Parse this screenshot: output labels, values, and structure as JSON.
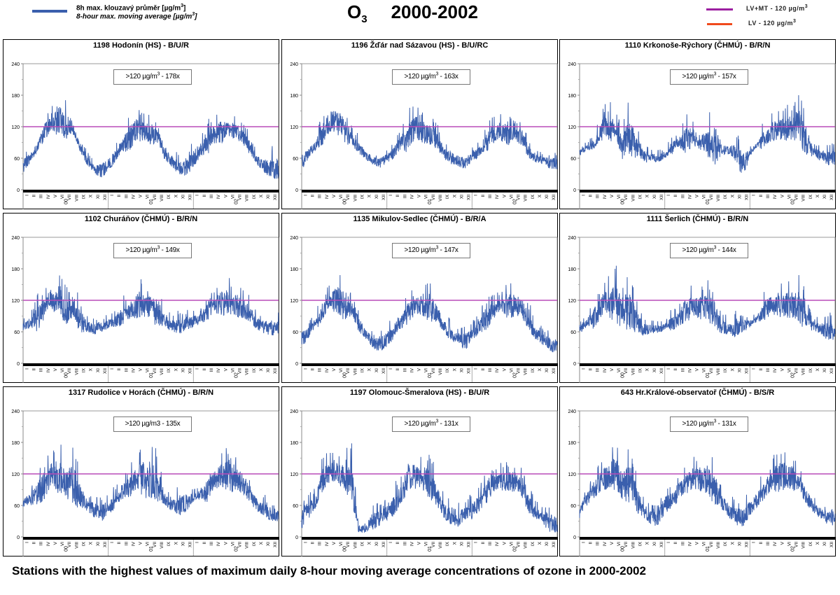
{
  "header": {
    "legend_series_cz": "8h max. klouzavý průměr [µg/m",
    "legend_series_en": "8-hour max. moving average [µg/m",
    "legend_sup": "3",
    "legend_close": "]",
    "title_species": "O",
    "title_sub": "3",
    "title_years": "2000-2002",
    "legend_lvmt": "LV+MT - 120 µg/m",
    "legend_lv": "LV    - 120 µg/m",
    "legend_unit_sup": "3"
  },
  "colors": {
    "series": "#3a5fad",
    "limit_lvmt": "#9c1fa0",
    "limit_lv": "#f04a1c",
    "threshold_line": "#b84bb8"
  },
  "caption": "Stations with the highest values of maximum daily 8-hour moving average concentrations of ozone in 2000-2002",
  "chart_data": [
    {
      "type": "line",
      "title": "1198 Hodonín (HS) - B/U/R",
      "count_label": ">120 µg/m",
      "count_sup": "3",
      "count_suffix": " - 178x",
      "ylim": [
        0,
        240
      ],
      "yticks": [
        "0",
        "60",
        "120",
        "180",
        "240"
      ],
      "threshold": 120,
      "months": [
        "I",
        "II",
        "III",
        "IV",
        "V",
        "VI",
        "VII",
        "VIII",
        "IX",
        "X",
        "XI",
        "XII"
      ],
      "years": [
        "00",
        "01",
        "02"
      ],
      "monthly_mean": [
        45,
        60,
        80,
        110,
        125,
        130,
        120,
        115,
        80,
        55,
        40,
        35,
        45,
        65,
        85,
        100,
        115,
        110,
        105,
        100,
        65,
        55,
        40,
        40,
        60,
        75,
        90,
        105,
        110,
        115,
        110,
        100,
        75,
        55,
        45,
        40
      ],
      "monthly_peak": [
        70,
        75,
        95,
        140,
        150,
        185,
        170,
        130,
        100,
        70,
        55,
        60,
        70,
        85,
        110,
        150,
        155,
        145,
        145,
        120,
        85,
        75,
        65,
        70,
        90,
        100,
        135,
        135,
        150,
        140,
        135,
        125,
        100,
        70,
        70,
        75
      ]
    },
    {
      "type": "line",
      "title": "1196 Žďár nad Sázavou (HS) - B/U/RC",
      "count_label": ">120 µg/m",
      "count_sup": "3",
      "count_suffix": " - 163x",
      "ylim": [
        0,
        240
      ],
      "yticks": [
        "0",
        "60",
        "120",
        "180",
        "240"
      ],
      "threshold": 120,
      "months": [
        "I",
        "II",
        "III",
        "IV",
        "V",
        "VI",
        "VII",
        "VIII",
        "IX",
        "X",
        "XI",
        "XII"
      ],
      "years": [
        "00",
        "01",
        "02"
      ],
      "monthly_mean": [
        50,
        70,
        85,
        110,
        130,
        130,
        110,
        100,
        80,
        65,
        55,
        50,
        60,
        70,
        90,
        100,
        115,
        110,
        105,
        95,
        70,
        60,
        55,
        50,
        60,
        75,
        90,
        105,
        110,
        105,
        105,
        100,
        70,
        60,
        55,
        50
      ],
      "monthly_peak": [
        80,
        85,
        100,
        155,
        165,
        175,
        155,
        125,
        100,
        80,
        70,
        70,
        75,
        90,
        115,
        155,
        160,
        150,
        145,
        125,
        90,
        80,
        75,
        70,
        80,
        95,
        125,
        140,
        140,
        145,
        125,
        130,
        90,
        75,
        70,
        70
      ]
    },
    {
      "type": "line",
      "title": "1110 Krkonoše-Rýchory (ČHMÚ) - B/R/N",
      "count_label": ">120 µg/m",
      "count_sup": "3",
      "count_suffix": " - 157x",
      "ylim": [
        0,
        240
      ],
      "yticks": [
        "0",
        "60",
        "120",
        "180",
        "240"
      ],
      "threshold": 120,
      "months": [
        "I",
        "II",
        "III",
        "IV",
        "V",
        "VI",
        "VII",
        "VIII",
        "IX",
        "X",
        "XI",
        "XII"
      ],
      "years": [
        "00",
        "01",
        "02"
      ],
      "monthly_mean": [
        70,
        80,
        85,
        110,
        120,
        115,
        80,
        100,
        80,
        65,
        60,
        60,
        65,
        80,
        90,
        95,
        100,
        90,
        85,
        90,
        75,
        75,
        70,
        45,
        70,
        85,
        95,
        110,
        115,
        115,
        115,
        115,
        85,
        70,
        65,
        60
      ],
      "monthly_peak": [
        80,
        90,
        100,
        145,
        175,
        150,
        120,
        175,
        120,
        90,
        75,
        75,
        75,
        100,
        105,
        145,
        130,
        115,
        130,
        170,
        95,
        90,
        100,
        90,
        80,
        95,
        130,
        145,
        150,
        155,
        155,
        185,
        120,
        85,
        85,
        85
      ]
    },
    {
      "type": "line",
      "title": "1102 Churáňov (ČHMÚ) - B/R/N",
      "count_label": ">120 µg/m",
      "count_sup": "3",
      "count_suffix": " - 149x",
      "ylim": [
        0,
        240
      ],
      "yticks": [
        "0",
        "60",
        "120",
        "180",
        "240"
      ],
      "threshold": 120,
      "months": [
        "I",
        "II",
        "III",
        "IV",
        "V",
        "VI",
        "VII",
        "VIII",
        "IX",
        "X",
        "XI",
        "XII"
      ],
      "years": [
        "00",
        "01",
        "02"
      ],
      "monthly_mean": [
        70,
        75,
        85,
        105,
        120,
        120,
        100,
        105,
        80,
        70,
        65,
        70,
        75,
        80,
        90,
        100,
        110,
        110,
        105,
        95,
        80,
        70,
        70,
        75,
        80,
        85,
        100,
        110,
        115,
        115,
        110,
        105,
        90,
        75,
        70,
        65
      ],
      "monthly_peak": [
        85,
        90,
        130,
        140,
        155,
        170,
        150,
        150,
        120,
        90,
        85,
        90,
        90,
        100,
        125,
        130,
        155,
        150,
        150,
        145,
        100,
        90,
        95,
        100,
        100,
        100,
        135,
        135,
        160,
        155,
        150,
        140,
        120,
        95,
        95,
        95
      ]
    },
    {
      "type": "line",
      "title": "1135 Mikulov-Sedlec (ČHMÚ) - B/R/A",
      "count_label": ">120 µg/m",
      "count_sup": "3",
      "count_suffix": " - 147x",
      "ylim": [
        0,
        240
      ],
      "yticks": [
        "0",
        "60",
        "120",
        "180",
        "240"
      ],
      "threshold": 120,
      "months": [
        "I",
        "II",
        "III",
        "IV",
        "V",
        "VI",
        "VII",
        "VIII",
        "IX",
        "X",
        "XI",
        "XII"
      ],
      "years": [
        "00",
        "01",
        "02"
      ],
      "monthly_mean": [
        45,
        60,
        75,
        100,
        120,
        120,
        110,
        105,
        75,
        55,
        40,
        35,
        45,
        60,
        80,
        95,
        110,
        110,
        105,
        95,
        70,
        55,
        45,
        40,
        55,
        70,
        85,
        100,
        110,
        110,
        110,
        105,
        75,
        55,
        45,
        35
      ],
      "monthly_peak": [
        75,
        80,
        100,
        135,
        150,
        170,
        165,
        130,
        100,
        70,
        60,
        60,
        70,
        85,
        105,
        135,
        140,
        145,
        155,
        125,
        90,
        80,
        65,
        70,
        75,
        95,
        125,
        130,
        130,
        155,
        150,
        135,
        110,
        75,
        65,
        60
      ]
    },
    {
      "type": "line",
      "title": "1111 Šerlich (ČHMÚ) - B/R/N",
      "count_label": ">120 µg/m",
      "count_sup": "3",
      "count_suffix": " - 144x",
      "ylim": [
        0,
        240
      ],
      "yticks": [
        "0",
        "60",
        "120",
        "180",
        "240"
      ],
      "threshold": 120,
      "months": [
        "I",
        "II",
        "III",
        "IV",
        "V",
        "VI",
        "VII",
        "VIII",
        "IX",
        "X",
        "XI",
        "XII"
      ],
      "years": [
        "00",
        "01",
        "02"
      ],
      "monthly_mean": [
        65,
        75,
        85,
        105,
        115,
        115,
        95,
        100,
        80,
        65,
        65,
        65,
        70,
        75,
        85,
        100,
        105,
        105,
        105,
        95,
        70,
        65,
        65,
        70,
        75,
        85,
        100,
        110,
        110,
        110,
        110,
        105,
        80,
        70,
        65,
        60
      ],
      "monthly_peak": [
        80,
        90,
        120,
        140,
        165,
        180,
        150,
        170,
        120,
        90,
        80,
        80,
        80,
        100,
        110,
        145,
        140,
        145,
        150,
        145,
        95,
        85,
        95,
        90,
        90,
        95,
        135,
        140,
        150,
        155,
        155,
        170,
        110,
        85,
        85,
        90
      ]
    },
    {
      "type": "line",
      "title": "1317 Rudolice v Horách (ČHMÚ) - B/R/N",
      "count_label": ">120 µg/m3",
      "count_sup": "",
      "count_suffix": " - 135x",
      "ylim": [
        0,
        240
      ],
      "yticks": [
        "0",
        "60",
        "120",
        "180",
        "240"
      ],
      "threshold": 120,
      "months": [
        "I",
        "II",
        "III",
        "IV",
        "V",
        "VI",
        "VII",
        "VIII",
        "IX",
        "X",
        "XI",
        "XII"
      ],
      "years": [
        "00",
        "01",
        "02"
      ],
      "monthly_mean": [
        65,
        70,
        80,
        100,
        120,
        115,
        100,
        100,
        75,
        60,
        50,
        45,
        55,
        70,
        85,
        95,
        110,
        110,
        105,
        95,
        70,
        60,
        60,
        65,
        75,
        80,
        85,
        110,
        115,
        115,
        110,
        100,
        75,
        60,
        50,
        40
      ],
      "monthly_peak": [
        80,
        90,
        120,
        150,
        160,
        175,
        145,
        170,
        120,
        80,
        75,
        75,
        80,
        95,
        115,
        130,
        150,
        175,
        165,
        150,
        90,
        80,
        95,
        95,
        90,
        95,
        130,
        140,
        160,
        175,
        150,
        140,
        100,
        80,
        75,
        60
      ]
    },
    {
      "type": "line",
      "title": "1197 Olomouc-Šmeralova (HS) - B/U/R",
      "count_label": ">120 µg/m",
      "count_sup": "3",
      "count_suffix": " - 131x",
      "ylim": [
        0,
        240
      ],
      "yticks": [
        "0",
        "60",
        "120",
        "180",
        "240"
      ],
      "threshold": 120,
      "months": [
        "I",
        "II",
        "III",
        "IV",
        "V",
        "VI",
        "VII",
        "VIII",
        "IX",
        "X",
        "XI",
        "XII"
      ],
      "years": [
        "00",
        "01",
        "02"
      ],
      "monthly_mean": [
        35,
        50,
        70,
        110,
        125,
        125,
        110,
        105,
        15,
        15,
        30,
        35,
        45,
        60,
        80,
        110,
        115,
        110,
        100,
        80,
        50,
        40,
        35,
        45,
        50,
        65,
        85,
        100,
        105,
        105,
        105,
        95,
        60,
        45,
        35,
        25
      ],
      "monthly_peak": [
        75,
        80,
        95,
        150,
        160,
        160,
        155,
        170,
        30,
        25,
        60,
        60,
        70,
        95,
        115,
        150,
        160,
        150,
        150,
        120,
        75,
        70,
        65,
        65,
        80,
        95,
        125,
        125,
        135,
        140,
        140,
        130,
        90,
        65,
        60,
        55
      ]
    },
    {
      "type": "line",
      "title": "643 Hr.Králové-observatoř (ČHMÚ) - B/S/R",
      "count_label": ">120 µg/m",
      "count_sup": "3",
      "count_suffix": " - 131x",
      "ylim": [
        0,
        240
      ],
      "yticks": [
        "0",
        "60",
        "120",
        "180",
        "240"
      ],
      "threshold": 120,
      "months": [
        "I",
        "II",
        "III",
        "IV",
        "V",
        "VI",
        "VII",
        "VIII",
        "IX",
        "X",
        "XI",
        "XII"
      ],
      "years": [
        "00",
        "01",
        "02"
      ],
      "monthly_mean": [
        45,
        70,
        90,
        105,
        115,
        120,
        95,
        105,
        70,
        50,
        35,
        35,
        60,
        70,
        85,
        100,
        110,
        110,
        105,
        90,
        65,
        50,
        40,
        35,
        55,
        70,
        90,
        105,
        115,
        115,
        110,
        100,
        75,
        55,
        45,
        35
      ],
      "monthly_peak": [
        70,
        90,
        120,
        145,
        155,
        180,
        140,
        180,
        120,
        75,
        60,
        60,
        90,
        95,
        120,
        135,
        145,
        155,
        150,
        145,
        90,
        75,
        70,
        70,
        80,
        95,
        125,
        135,
        170,
        160,
        155,
        130,
        100,
        75,
        65,
        60
      ]
    }
  ]
}
